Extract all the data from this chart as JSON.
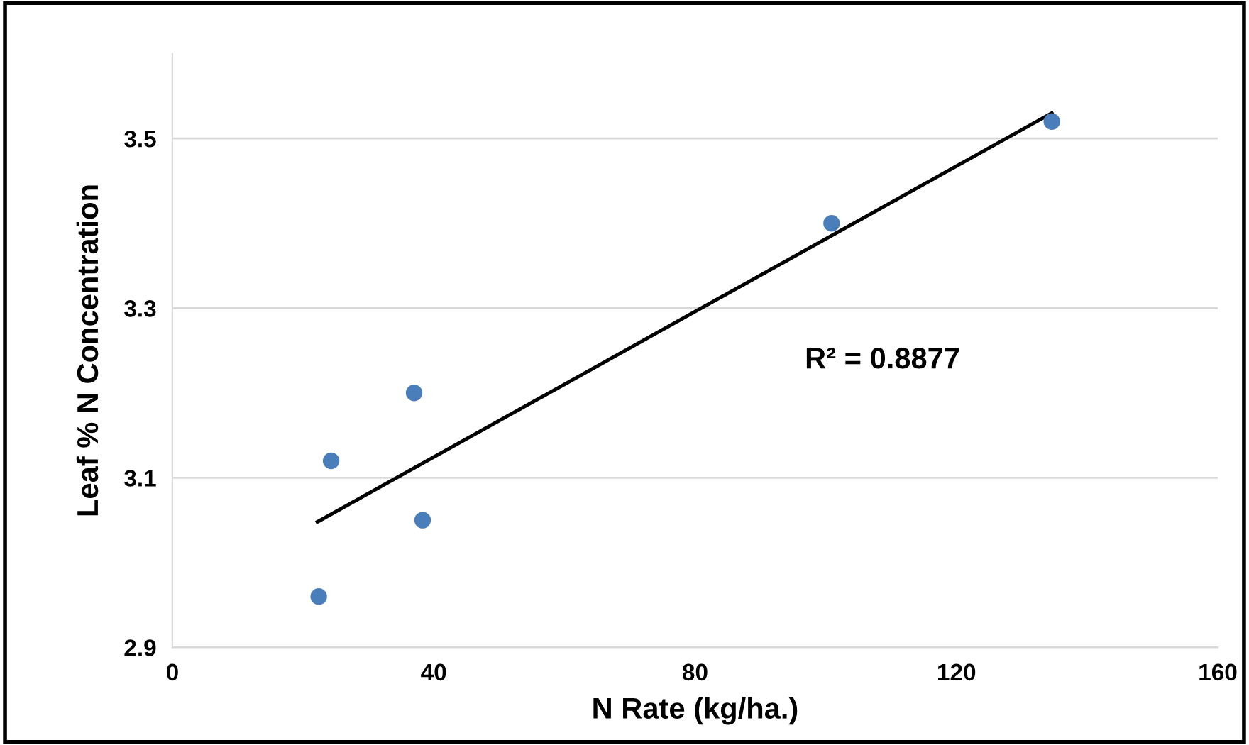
{
  "chart_data": {
    "type": "scatter",
    "xlabel": "N Rate (kg/ha.)",
    "ylabel": "Leaf % N Concentration",
    "x": [
      22.4,
      24.3,
      37.0,
      38.3,
      100.9,
      134.6
    ],
    "series": [
      {
        "marker": "circle",
        "color": "#4a7ebb",
        "values": [
          2.96,
          3.12,
          3.2,
          3.05,
          3.4,
          3.52
        ]
      },
      {
        "type": "line",
        "color": "#000000",
        "x": [
          22.2,
          134.6
        ],
        "values": [
          3.048,
          3.53
        ]
      }
    ],
    "xlim": [
      0,
      160
    ],
    "xticks": [
      0,
      40,
      80,
      120,
      160
    ],
    "ylim": [
      2.9,
      3.6
    ],
    "yticks": [
      {
        "value": 2.9,
        "label": "2.9"
      },
      {
        "value": 3.1,
        "label": "3.1"
      },
      {
        "value": 3.3,
        "label": "3.3"
      },
      {
        "value": 3.5,
        "label": "3.5"
      }
    ],
    "grid": "y",
    "annotations": [
      "R² = 0.8877"
    ]
  }
}
